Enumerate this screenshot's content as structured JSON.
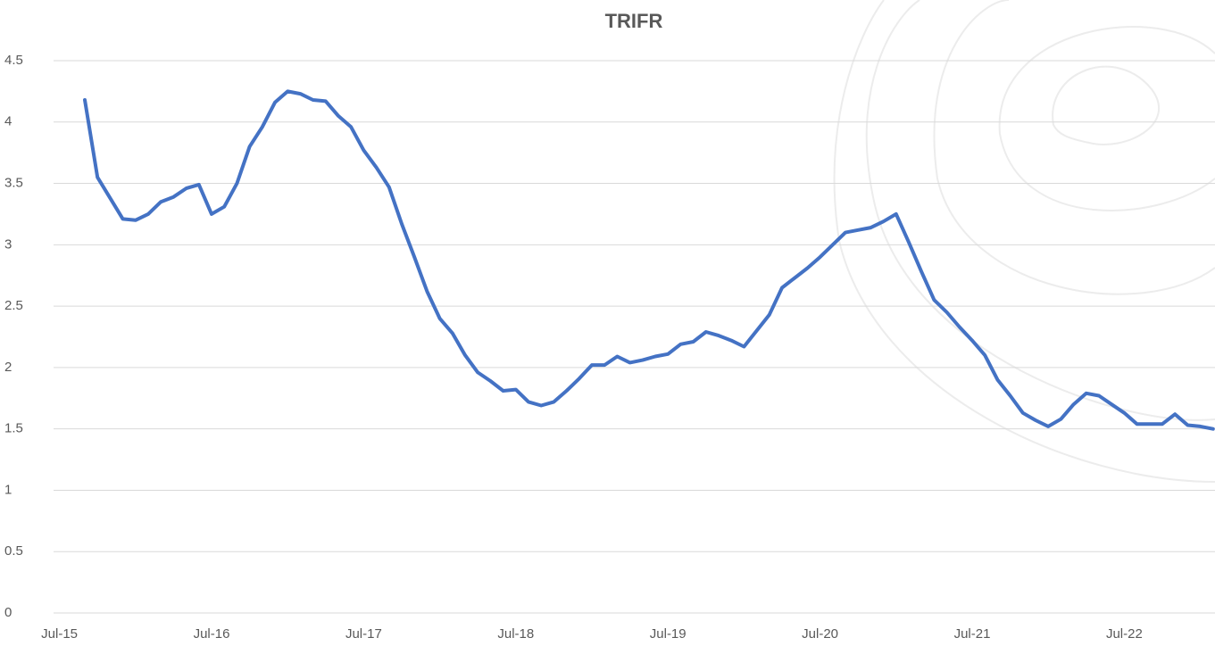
{
  "chart_data": {
    "type": "line",
    "title": "TRIFR",
    "categories": [
      "Jul-15",
      null,
      null,
      null,
      null,
      null,
      null,
      null,
      null,
      null,
      null,
      null,
      "Jul-16",
      null,
      null,
      null,
      null,
      null,
      null,
      null,
      null,
      null,
      null,
      null,
      "Jul-17",
      null,
      null,
      null,
      null,
      null,
      null,
      null,
      null,
      null,
      null,
      null,
      "Jul-18",
      null,
      null,
      null,
      null,
      null,
      null,
      null,
      null,
      null,
      null,
      null,
      "Jul-19",
      null,
      null,
      null,
      null,
      null,
      null,
      null,
      null,
      null,
      null,
      null,
      "Jul-20",
      null,
      null,
      null,
      null,
      null,
      null,
      null,
      null,
      null,
      null,
      null,
      "Jul-21",
      null,
      null,
      null,
      null,
      null,
      null,
      null,
      null,
      null,
      null,
      null,
      "Jul-22",
      null,
      null,
      null,
      null,
      null,
      null,
      null
    ],
    "values": [
      null,
      null,
      4.18,
      3.55,
      3.38,
      3.21,
      3.2,
      3.25,
      3.35,
      3.39,
      3.46,
      3.49,
      3.25,
      3.31,
      3.5,
      3.8,
      3.96,
      4.16,
      4.25,
      4.23,
      4.18,
      4.17,
      4.05,
      3.96,
      3.77,
      3.63,
      3.47,
      3.17,
      2.9,
      2.62,
      2.4,
      2.28,
      2.1,
      1.96,
      1.89,
      1.81,
      1.82,
      1.72,
      1.69,
      1.72,
      1.81,
      1.91,
      2.02,
      2.02,
      2.09,
      2.04,
      2.06,
      2.09,
      2.11,
      2.19,
      2.21,
      2.29,
      2.26,
      2.22,
      2.17,
      2.3,
      2.43,
      2.65,
      2.73,
      2.81,
      2.9,
      3.0,
      3.1,
      3.12,
      3.14,
      3.19,
      3.25,
      3.02,
      2.78,
      2.55,
      2.45,
      2.33,
      2.22,
      2.1,
      1.9,
      1.77,
      1.63,
      1.57,
      1.52,
      1.58,
      1.7,
      1.79,
      1.77,
      1.7,
      1.63,
      1.54,
      1.54,
      1.54,
      1.62,
      1.53,
      1.52,
      1.5
    ],
    "color": "#4472c4",
    "ylim": [
      0,
      4.5
    ],
    "yticks": [
      0,
      0.5,
      1,
      1.5,
      2,
      2.5,
      3,
      3.5,
      4,
      4.5
    ],
    "grid": true
  }
}
